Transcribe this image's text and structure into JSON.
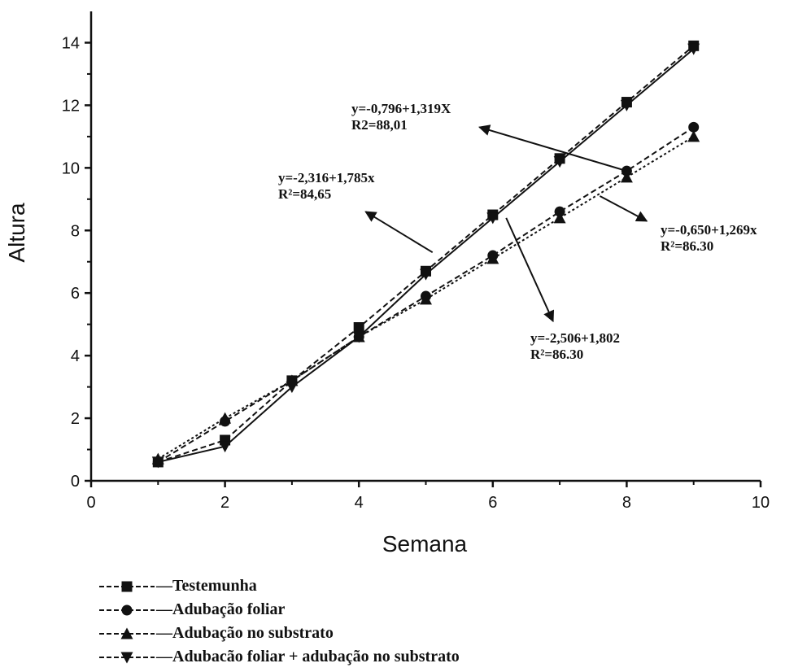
{
  "chart_data": {
    "type": "line",
    "xlabel": "Semana",
    "ylabel": "Altura",
    "xlim": [
      0,
      10
    ],
    "ylim": [
      0,
      15
    ],
    "xticks": [
      0,
      2,
      4,
      6,
      8,
      10
    ],
    "yticks": [
      0,
      2,
      4,
      6,
      8,
      10,
      12,
      14
    ],
    "legend_position": "bottom-left",
    "grid": false,
    "series": [
      {
        "name": "Testemunha",
        "marker": "square",
        "dash": "dash",
        "points": [
          [
            1,
            0.6
          ],
          [
            2,
            1.3
          ],
          [
            3,
            3.2
          ],
          [
            4,
            4.9
          ],
          [
            5,
            6.7
          ],
          [
            6,
            8.5
          ],
          [
            7,
            10.3
          ],
          [
            8,
            12.1
          ],
          [
            9,
            13.9
          ]
        ]
      },
      {
        "name": "Adubação foliar",
        "marker": "circle",
        "dash": "dash",
        "points": [
          [
            1,
            0.6
          ],
          [
            2,
            1.9
          ],
          [
            3,
            3.2
          ],
          [
            4,
            4.6
          ],
          [
            5,
            5.9
          ],
          [
            6,
            7.2
          ],
          [
            7,
            8.6
          ],
          [
            8,
            9.9
          ],
          [
            9,
            11.3
          ]
        ]
      },
      {
        "name": "Adubação no substrato",
        "marker": "triangle-up",
        "dash": "dot",
        "points": [
          [
            1,
            0.7
          ],
          [
            2,
            2.0
          ],
          [
            3,
            3.2
          ],
          [
            4,
            4.6
          ],
          [
            5,
            5.8
          ],
          [
            6,
            7.1
          ],
          [
            7,
            8.4
          ],
          [
            8,
            9.7
          ],
          [
            9,
            11.0
          ]
        ]
      },
      {
        "name": "Adubacão foliar + adubação no substrato",
        "marker": "triangle-down",
        "dash": "solid",
        "points": [
          [
            1,
            0.6
          ],
          [
            2,
            1.1
          ],
          [
            3,
            3.0
          ],
          [
            4,
            4.6
          ],
          [
            5,
            6.6
          ],
          [
            6,
            8.4
          ],
          [
            7,
            10.2
          ],
          [
            8,
            12.0
          ],
          [
            9,
            13.8
          ]
        ]
      }
    ],
    "annotations": [
      {
        "line1": "y=-0,796+1,319X",
        "line2": "R2=88,01",
        "arrow_from": [
          8,
          9.9
        ],
        "arrow_to": [
          5.8,
          11.3
        ]
      },
      {
        "line1": "y=-2,316+1,785x",
        "line2": "R²=84,65",
        "arrow_from": [
          5.1,
          7.3
        ],
        "arrow_to": [
          4.1,
          8.6
        ]
      },
      {
        "line1": "y=-0,650+1,269x",
        "line2": "R²=86.30",
        "arrow_from": [
          7.6,
          9.1
        ],
        "arrow_to": [
          8.3,
          8.3
        ]
      },
      {
        "line1": "y=-2,506+1,802",
        "line2": "R²=86.30",
        "arrow_from": [
          6.2,
          8.4
        ],
        "arrow_to": [
          6.9,
          5.1
        ]
      }
    ]
  }
}
